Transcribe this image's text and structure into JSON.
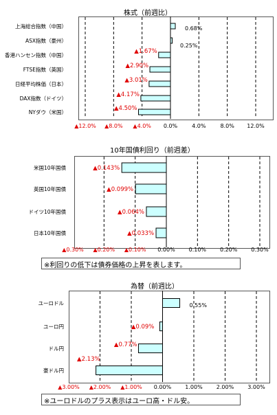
{
  "chart_data": [
    {
      "type": "bar",
      "orientation": "horizontal",
      "title": "株式（前週比）",
      "categories": [
        "上海総合指数（中国）",
        "ASX指数（豪州）",
        "香港ハンセン指数（中国）",
        "FTSE指数（英国）",
        "日経平均株価（日本）",
        "DAX指数（ドイツ）",
        "NYダウ（米国）"
      ],
      "values": [
        0.68,
        0.25,
        -1.67,
        -2.9,
        -3.01,
        -4.17,
        -4.5
      ],
      "value_labels": [
        "0.68%",
        "0.25%",
        "▲1.67%",
        "▲2.90%",
        "▲3.01%",
        "▲4.17%",
        "▲4.50%"
      ],
      "xlim": [
        -12,
        12
      ],
      "ticks": [
        -12,
        -8,
        -4,
        0,
        4,
        8,
        12
      ],
      "tick_labels": [
        "▲12.0%",
        "▲8.0%",
        "▲4.0%",
        "0.0%",
        "4.0%",
        "8.0%",
        "12.0%"
      ],
      "grid": "vertical dashed",
      "colors": {
        "bar": "#ccffff",
        "bar_edge": "#000000",
        "negative_text": "#e00000"
      }
    },
    {
      "type": "bar",
      "orientation": "horizontal",
      "title": "10年国債利回り（前週差）",
      "categories": [
        "米国10年国債",
        "英国10年国債",
        "ドイツ10年国債",
        "日本10年国債"
      ],
      "values": [
        -0.143,
        -0.099,
        -0.064,
        -0.033
      ],
      "value_labels": [
        "▲0.143%",
        "▲0.099%",
        "▲0.064%",
        "▲0.033%"
      ],
      "xlim": [
        -0.3,
        0.3
      ],
      "ticks": [
        -0.3,
        -0.2,
        -0.1,
        0,
        0.1,
        0.2,
        0.3
      ],
      "tick_labels": [
        "▲0.30%",
        "▲0.20%",
        "▲0.10%",
        "0.00%",
        "0.10%",
        "0.20%",
        "0.30%"
      ],
      "grid": "vertical dashed",
      "note": "※利回りの低下は債券価格の上昇を表します。",
      "colors": {
        "bar": "#ccffff",
        "bar_edge": "#000000",
        "negative_text": "#e00000"
      }
    },
    {
      "type": "bar",
      "orientation": "horizontal",
      "title": "為替（前週比）",
      "categories": [
        "ユーロドル",
        "ユーロ円",
        "ドル円",
        "豪ドル円"
      ],
      "values": [
        0.55,
        -0.09,
        -0.77,
        -2.13
      ],
      "value_labels": [
        "0.55%",
        "▲0.09%",
        "▲0.77%",
        "▲2.13%"
      ],
      "xlim": [
        -3,
        3
      ],
      "ticks": [
        -3,
        -2,
        -1,
        0,
        1,
        2,
        3
      ],
      "tick_labels": [
        "▲3.00%",
        "▲2.00%",
        "▲1.00%",
        "0.00%",
        "1.00%",
        "2.00%",
        "3.00%"
      ],
      "grid": "vertical dashed",
      "note": "※ユーロドルのプラス表示はユーロ高・ドル安。",
      "colors": {
        "bar": "#ccffff",
        "bar_edge": "#000000",
        "negative_text": "#e00000"
      }
    }
  ]
}
